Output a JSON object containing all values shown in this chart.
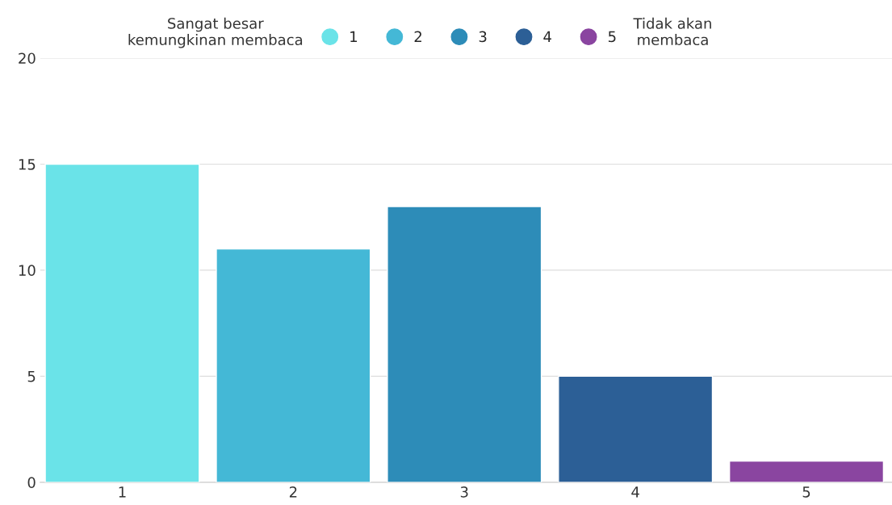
{
  "chart_data": {
    "type": "bar",
    "categories": [
      "1",
      "2",
      "3",
      "4",
      "5"
    ],
    "series": [
      {
        "name": "1",
        "color": "#6ae3e8",
        "values": [
          15,
          null,
          null,
          null,
          null
        ]
      },
      {
        "name": "2",
        "color": "#44b8d6",
        "values": [
          null,
          11,
          null,
          null,
          null
        ]
      },
      {
        "name": "3",
        "color": "#2d8cb8",
        "values": [
          null,
          null,
          13,
          null,
          null
        ]
      },
      {
        "name": "4",
        "color": "#2c5f96",
        "values": [
          null,
          null,
          null,
          5,
          null
        ]
      },
      {
        "name": "5",
        "color": "#8a45a0",
        "values": [
          null,
          null,
          null,
          null,
          1
        ]
      }
    ],
    "ylim": [
      0,
      20
    ],
    "yticks": [
      0,
      5,
      10,
      15,
      20
    ],
    "grid": "y",
    "legend": "top",
    "annotations": [
      "Sangat besar\nkemungkinan membaca",
      "Tidak akan\nmembaca"
    ]
  }
}
